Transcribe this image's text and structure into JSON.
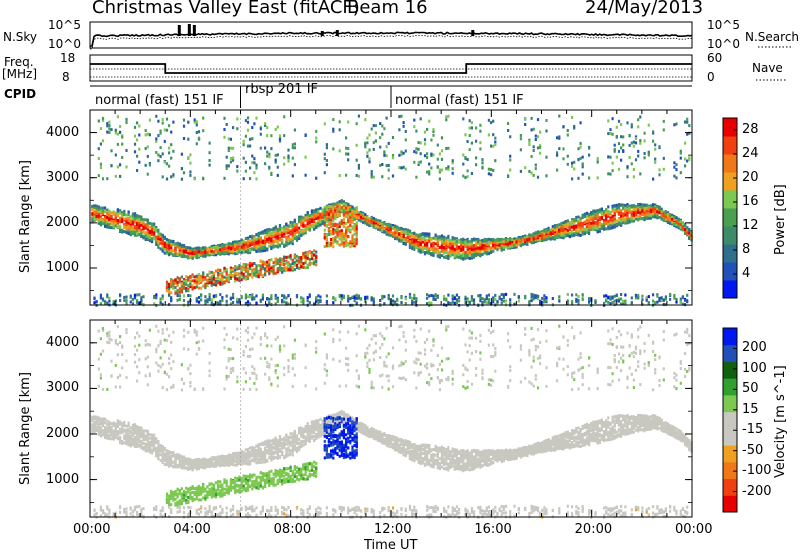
{
  "header": {
    "station": "Christmas Valley East (fitACF)",
    "beam": "Beam 16",
    "date": "24/May/2013"
  },
  "strip": {
    "nsky_label": "N.Sky",
    "nsearch_label": "N.Search",
    "left_top_tick": "10^5",
    "left_bot_tick": "10^0",
    "right_top_tick": "10^5",
    "right_bot_tick": "10^0",
    "freq_label_1": "Freq.",
    "freq_label_2": "[MHz]",
    "freq_top_tick": "18",
    "freq_bot_tick": "8",
    "nave_top_tick": "60",
    "nave_bot_tick": "0",
    "nave_label": "Nave",
    "cpid_label": "CPID"
  },
  "cpid_segments": [
    {
      "label": "normal (fast) 151 IF",
      "start_hour": 0,
      "end_hour": 6
    },
    {
      "label": "rbsp 201 IF",
      "start_hour": 6,
      "end_hour": 12
    },
    {
      "label": "normal (fast) 151 IF",
      "start_hour": 12,
      "end_hour": 24
    }
  ],
  "colors": {
    "power_scale": [
      "#0018f0",
      "#2050b8",
      "#2e6f8e",
      "#3c8c6a",
      "#4aa050",
      "#7cc850",
      "#f0a020",
      "#f07818",
      "#f04010",
      "#e80000"
    ],
    "velocity_scale": [
      "#e80000",
      "#f04010",
      "#f07818",
      "#f0a020",
      "#c8c8c0",
      "#c8c8c0",
      "#7cc850",
      "#30a030",
      "#106010",
      "#2050b8",
      "#0018f0"
    ]
  },
  "chart_data": [
    {
      "type": "heatmap",
      "name": "power",
      "xlabel": "",
      "ylabel": "Slant Range [km]",
      "colorbar_label": "Power [dB]",
      "colorbar_ticks": [
        4,
        8,
        12,
        16,
        20,
        24,
        28
      ],
      "colorbar_range": [
        0,
        30
      ],
      "x_ticks": [
        "00:00",
        "04:00",
        "08:00",
        "12:00",
        "16:00",
        "20:00",
        "00:00"
      ],
      "xlim": [
        0,
        24
      ],
      "y_ticks": [
        1000,
        2000,
        3000,
        4000
      ],
      "ylim": [
        180,
        4500
      ],
      "main_echo_band_range_km": [
        [
          0,
          2250
        ],
        [
          1,
          2100
        ],
        [
          2,
          1950
        ],
        [
          2.5,
          1800
        ],
        [
          3,
          1500
        ],
        [
          4,
          1350
        ],
        [
          6,
          1500
        ],
        [
          8,
          1800
        ],
        [
          8.5,
          2000
        ],
        [
          10,
          2400
        ],
        [
          11,
          2100
        ],
        [
          12,
          1850
        ],
        [
          13,
          1600
        ],
        [
          14,
          1500
        ],
        [
          15,
          1450
        ],
        [
          17,
          1600
        ],
        [
          19,
          1900
        ],
        [
          21,
          2200
        ],
        [
          22.5,
          2300
        ],
        [
          23.5,
          2000
        ],
        [
          24,
          1700
        ]
      ]
    },
    {
      "type": "heatmap",
      "name": "velocity",
      "xlabel": "Time UT",
      "ylabel": "Slant Range [km]",
      "colorbar_label": "Velocity [m s^-1]",
      "colorbar_ticks": [
        200,
        100,
        50,
        15,
        -15,
        -50,
        -100,
        -200
      ],
      "x_ticks": [
        "00:00",
        "04:00",
        "08:00",
        "12:00",
        "16:00",
        "20:00",
        "00:00"
      ],
      "xlim": [
        0,
        24
      ],
      "y_ticks": [
        1000,
        2000,
        3000,
        4000
      ],
      "ylim": [
        180,
        4500
      ],
      "features": [
        {
          "desc_hour": [
            9.5,
            10.5
          ],
          "range_km": [
            1500,
            2400
          ],
          "velocity": 200
        },
        {
          "desc_hour": [
            3,
            9
          ],
          "range_km": [
            500,
            1200
          ],
          "velocity": 50
        }
      ]
    }
  ]
}
